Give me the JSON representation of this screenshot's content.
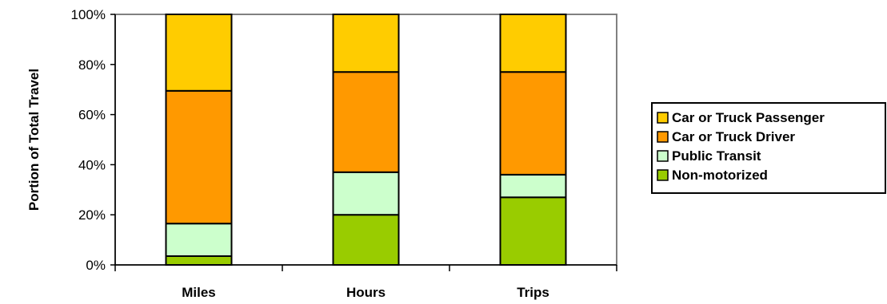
{
  "chart_data": {
    "type": "bar",
    "stacked": true,
    "percent": true,
    "title": "",
    "xlabel": "",
    "ylabel": "Portion of Total Travel",
    "ylim": [
      0,
      100
    ],
    "yticks": [
      "0%",
      "20%",
      "40%",
      "60%",
      "80%",
      "100%"
    ],
    "categories": [
      "Miles",
      "Hours",
      "Trips"
    ],
    "series": [
      {
        "name": "Non-motorized",
        "color": "#99CC00",
        "values": [
          3.5,
          20,
          27
        ]
      },
      {
        "name": "Public Transit",
        "color": "#CCFFCC",
        "values": [
          13,
          17,
          9
        ]
      },
      {
        "name": "Car or Truck Driver",
        "color": "#FF9900",
        "values": [
          53,
          40,
          41
        ]
      },
      {
        "name": "Car or Truck Passenger",
        "color": "#FFCC00",
        "values": [
          30.5,
          23,
          23
        ]
      }
    ],
    "grid": false,
    "legend": {
      "position": "right",
      "order": [
        "Car or Truck Passenger",
        "Car or Truck Driver",
        "Public Transit",
        "Non-motorized"
      ]
    }
  }
}
